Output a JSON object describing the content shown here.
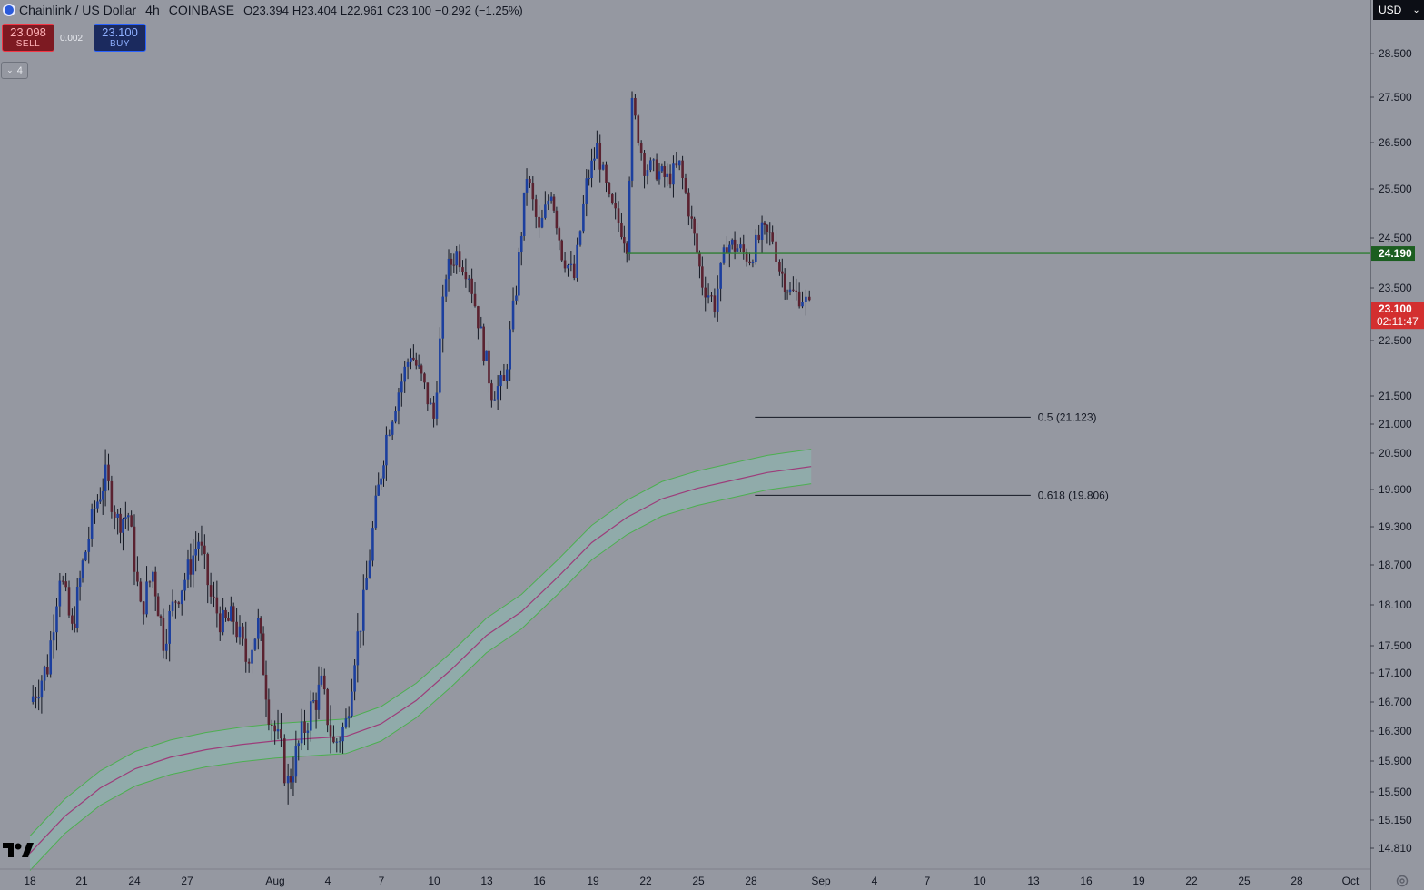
{
  "header": {
    "symbol": "Chainlink / US Dollar",
    "interval": "4h",
    "exchange": "COINBASE",
    "open": "O23.394",
    "high": "H23.404",
    "low": "L22.961",
    "close": "C23.100",
    "change": "−0.292 (−1.25%)",
    "icon": "chainlink-logo-icon"
  },
  "trade": {
    "sell_price": "23.098",
    "sell_label": "SELL",
    "spread": "0.002",
    "buy_price": "23.100",
    "buy_label": "BUY"
  },
  "indicators_toggle": "4",
  "currency": "USD",
  "colors": {
    "background": "#9598a1",
    "up_candle": "#1c3f9e",
    "down_candle": "#5a2230",
    "wick": "#131722",
    "horizontal_line": "#2e7d32",
    "band_fill": "#8fb1ad",
    "band_edges": "#4caf50",
    "band_mid": "#9c3d7a",
    "current_price": "#d32f2f"
  },
  "chart_data": {
    "type": "candlestick",
    "y_axis_ticks": [
      28.5,
      27.5,
      26.5,
      25.5,
      24.5,
      23.5,
      22.5,
      21.5,
      21.0,
      20.5,
      19.9,
      19.3,
      18.7,
      18.1,
      17.5,
      17.1,
      16.7,
      16.3,
      15.9,
      15.5,
      15.15,
      14.81
    ],
    "y_axis_labels": [
      "28.500",
      "27.500",
      "26.500",
      "25.500",
      "24.500",
      "23.500",
      "22.500",
      "21.500",
      "21.000",
      "20.500",
      "19.900",
      "19.300",
      "18.700",
      "18.100",
      "17.500",
      "17.100",
      "16.700",
      "16.300",
      "15.900",
      "15.500",
      "15.150",
      "14.810"
    ],
    "x_axis_labels": [
      "18",
      "21",
      "24",
      "27",
      "Aug",
      "4",
      "7",
      "10",
      "13",
      "16",
      "19",
      "22",
      "25",
      "28",
      "Sep",
      "4",
      "7",
      "10",
      "13",
      "16",
      "19",
      "22",
      "25",
      "28",
      "Oct"
    ],
    "close_path": [
      {
        "d": 18.0,
        "p": 16.7
      },
      {
        "d": 19.0,
        "p": 17.2
      },
      {
        "d": 19.7,
        "p": 18.6
      },
      {
        "d": 20.4,
        "p": 17.7
      },
      {
        "d": 21.0,
        "p": 18.7
      },
      {
        "d": 21.7,
        "p": 19.6
      },
      {
        "d": 22.3,
        "p": 20.1
      },
      {
        "d": 23.0,
        "p": 19.4
      },
      {
        "d": 23.6,
        "p": 19.5
      },
      {
        "d": 24.3,
        "p": 18.0
      },
      {
        "d": 25.0,
        "p": 18.6
      },
      {
        "d": 25.6,
        "p": 17.6
      },
      {
        "d": 26.3,
        "p": 18.2
      },
      {
        "d": 27.0,
        "p": 18.6
      },
      {
        "d": 27.6,
        "p": 19.1
      },
      {
        "d": 28.3,
        "p": 18.2
      },
      {
        "d": 29.0,
        "p": 17.8
      },
      {
        "d": 29.6,
        "p": 17.9
      },
      {
        "d": 30.3,
        "p": 17.3
      },
      {
        "d": 31.0,
        "p": 17.8
      },
      {
        "d": 31.6,
        "p": 16.6
      },
      {
        "d": 32.3,
        "p": 16.0
      },
      {
        "d": 32.7,
        "p": 15.6
      },
      {
        "d": 33.3,
        "p": 16.1
      },
      {
        "d": 34.0,
        "p": 16.6
      },
      {
        "d": 34.6,
        "p": 16.9
      },
      {
        "d": 35.3,
        "p": 16.1
      },
      {
        "d": 36.0,
        "p": 16.4
      },
      {
        "d": 36.5,
        "p": 17.4
      },
      {
        "d": 37.0,
        "p": 18.1
      },
      {
        "d": 37.7,
        "p": 19.6
      },
      {
        "d": 38.3,
        "p": 20.8
      },
      {
        "d": 39.0,
        "p": 21.6
      },
      {
        "d": 39.7,
        "p": 22.3
      },
      {
        "d": 40.3,
        "p": 21.8
      },
      {
        "d": 41.0,
        "p": 21.1
      },
      {
        "d": 41.7,
        "p": 23.8
      },
      {
        "d": 42.3,
        "p": 24.2
      },
      {
        "d": 43.0,
        "p": 23.8
      },
      {
        "d": 43.7,
        "p": 22.6
      },
      {
        "d": 44.3,
        "p": 21.6
      },
      {
        "d": 45.0,
        "p": 21.7
      },
      {
        "d": 45.7,
        "p": 23.5
      },
      {
        "d": 46.3,
        "p": 25.8
      },
      {
        "d": 47.0,
        "p": 24.6
      },
      {
        "d": 47.7,
        "p": 25.5
      },
      {
        "d": 48.3,
        "p": 24.2
      },
      {
        "d": 49.0,
        "p": 23.7
      },
      {
        "d": 49.7,
        "p": 25.6
      },
      {
        "d": 50.3,
        "p": 26.4
      },
      {
        "d": 51.0,
        "p": 25.2
      },
      {
        "d": 51.7,
        "p": 24.7
      },
      {
        "d": 52.0,
        "p": 24.4
      },
      {
        "d": 52.3,
        "p": 27.3
      },
      {
        "d": 53.0,
        "p": 26.0
      },
      {
        "d": 53.7,
        "p": 25.9
      },
      {
        "d": 54.3,
        "p": 25.7
      },
      {
        "d": 55.0,
        "p": 26.0
      },
      {
        "d": 55.7,
        "p": 24.8
      },
      {
        "d": 56.3,
        "p": 23.6
      },
      {
        "d": 57.0,
        "p": 23.2
      },
      {
        "d": 57.7,
        "p": 24.4
      },
      {
        "d": 58.3,
        "p": 24.3
      },
      {
        "d": 59.0,
        "p": 24.1
      },
      {
        "d": 59.7,
        "p": 24.6
      },
      {
        "d": 60.3,
        "p": 24.5
      },
      {
        "d": 60.7,
        "p": 23.9
      },
      {
        "d": 61.3,
        "p": 23.4
      },
      {
        "d": 62.0,
        "p": 23.35
      },
      {
        "d": 62.4,
        "p": 23.1
      }
    ],
    "current_price": {
      "value": 23.1,
      "label": "23.100",
      "countdown": "02:11:47"
    },
    "horizontal_levels": [
      {
        "value": 24.19,
        "label": "24.190",
        "from_day": 52.0
      }
    ],
    "fib_levels": [
      {
        "level": "0.5",
        "value": 21.123,
        "label": "0.5 (21.123)",
        "from_day": 59.3,
        "to_day": 75.0
      },
      {
        "level": "0.618",
        "value": 19.806,
        "label": "0.618 (19.806)",
        "from_day": 59.3,
        "to_day": 75.0
      }
    ],
    "band_mid": [
      {
        "d": 18.0,
        "p": 14.75
      },
      {
        "d": 20.0,
        "p": 15.2
      },
      {
        "d": 22.0,
        "p": 15.55
      },
      {
        "d": 24.0,
        "p": 15.8
      },
      {
        "d": 26.0,
        "p": 15.95
      },
      {
        "d": 28.0,
        "p": 16.05
      },
      {
        "d": 30.0,
        "p": 16.12
      },
      {
        "d": 32.0,
        "p": 16.17
      },
      {
        "d": 34.0,
        "p": 16.2
      },
      {
        "d": 36.0,
        "p": 16.23
      },
      {
        "d": 38.0,
        "p": 16.4
      },
      {
        "d": 40.0,
        "p": 16.72
      },
      {
        "d": 42.0,
        "p": 17.15
      },
      {
        "d": 44.0,
        "p": 17.65
      },
      {
        "d": 46.0,
        "p": 18.0
      },
      {
        "d": 48.0,
        "p": 18.5
      },
      {
        "d": 50.0,
        "p": 19.05
      },
      {
        "d": 52.0,
        "p": 19.45
      },
      {
        "d": 54.0,
        "p": 19.75
      },
      {
        "d": 56.0,
        "p": 19.92
      },
      {
        "d": 58.0,
        "p": 20.05
      },
      {
        "d": 60.0,
        "p": 20.18
      },
      {
        "d": 61.0,
        "p": 20.22
      },
      {
        "d": 62.5,
        "p": 20.28
      }
    ]
  }
}
